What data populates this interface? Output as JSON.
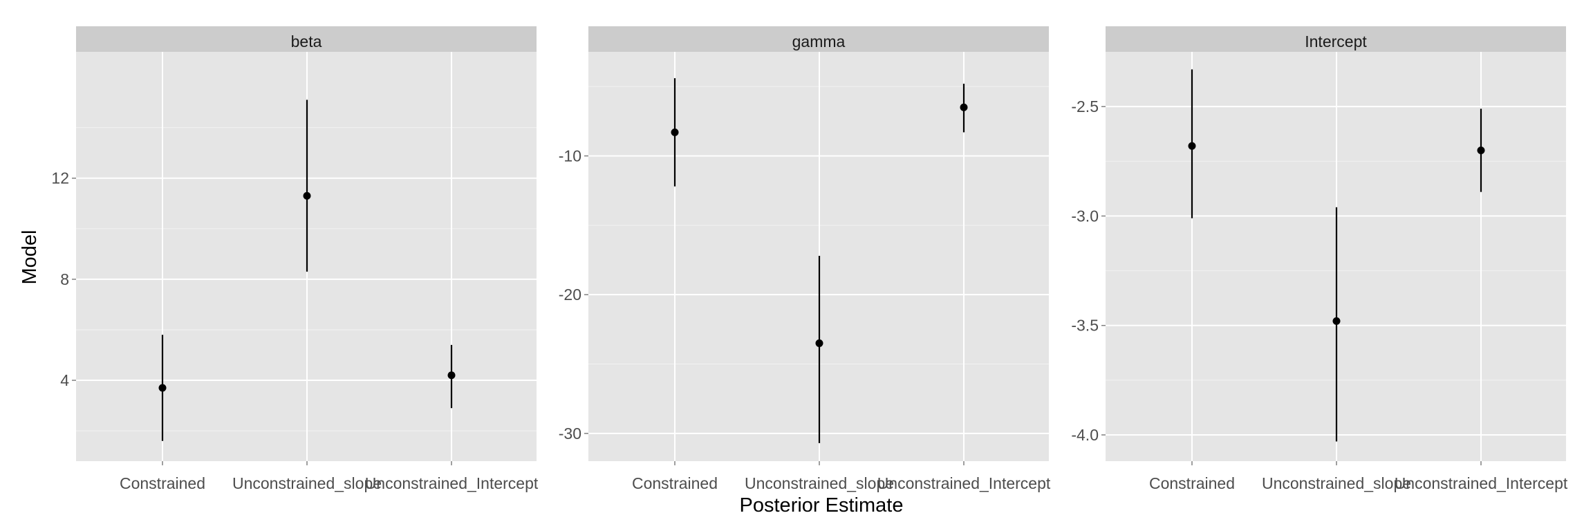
{
  "chart_data": {
    "type": "pointrange",
    "xlabel": "Posterior Estimate",
    "ylabel": "Model",
    "categories": [
      "Constrained",
      "Unconstrained_slope",
      "Unconstrained_Intercept"
    ],
    "point_color": "#000000",
    "panel_background": "#e5e5e5",
    "strip_background": "#cccccc",
    "grid_color": "#ffffff",
    "panels": [
      {
        "strip_label": "beta",
        "ylim": [
          0.8,
          17.0
        ],
        "y_ticks": [
          4,
          8,
          12
        ],
        "y_tick_labels": [
          "4",
          "8",
          "12"
        ],
        "points": [
          {
            "category": "Constrained",
            "estimate": 3.7,
            "lower": 1.6,
            "upper": 5.8
          },
          {
            "category": "Unconstrained_slope",
            "estimate": 11.3,
            "lower": 8.3,
            "upper": 15.1
          },
          {
            "category": "Unconstrained_Intercept",
            "estimate": 4.2,
            "lower": 2.9,
            "upper": 5.4
          }
        ]
      },
      {
        "strip_label": "gamma",
        "ylim": [
          -32.0,
          -2.5
        ],
        "y_ticks": [
          -30,
          -20,
          -10
        ],
        "y_tick_labels": [
          "-30",
          "-20",
          "-10"
        ],
        "points": [
          {
            "category": "Constrained",
            "estimate": -8.3,
            "lower": -12.2,
            "upper": -4.4
          },
          {
            "category": "Unconstrained_slope",
            "estimate": -23.5,
            "lower": -30.7,
            "upper": -17.2
          },
          {
            "category": "Unconstrained_Intercept",
            "estimate": -6.5,
            "lower": -8.3,
            "upper": -4.8
          }
        ]
      },
      {
        "strip_label": "Intercept",
        "ylim": [
          -4.12,
          -2.25
        ],
        "y_ticks": [
          -4.0,
          -3.5,
          -3.0,
          -2.5
        ],
        "y_tick_labels": [
          "-4.0",
          "-3.5",
          "-3.0",
          "-2.5"
        ],
        "points": [
          {
            "category": "Constrained",
            "estimate": -2.68,
            "lower": -3.01,
            "upper": -2.33
          },
          {
            "category": "Unconstrained_slope",
            "estimate": -3.48,
            "lower": -4.03,
            "upper": -2.96
          },
          {
            "category": "Unconstrained_Intercept",
            "estimate": -2.7,
            "lower": -2.89,
            "upper": -2.51
          }
        ]
      }
    ]
  }
}
